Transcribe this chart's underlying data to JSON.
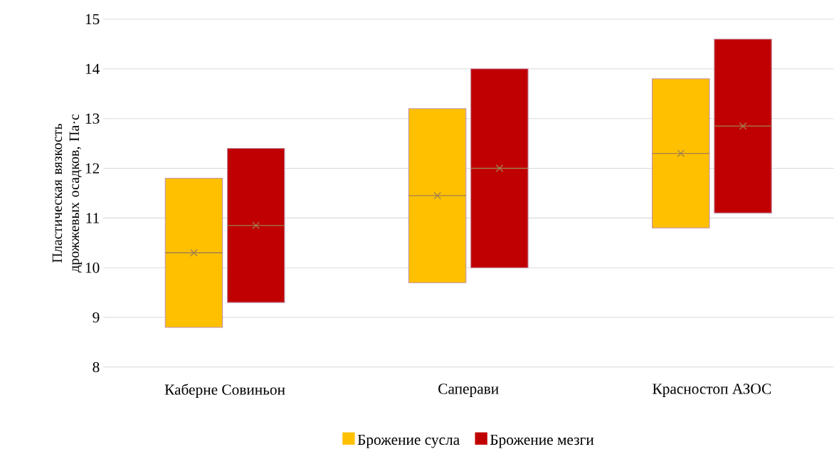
{
  "chart_data": {
    "type": "box",
    "ylabel": "Пластическая вязкость дрожжевых осадков, Па·с",
    "categories": [
      "Каберне Совиньон",
      "Саперави",
      "Красностоп АЗОС"
    ],
    "series": [
      {
        "name": "Брожение сусла",
        "color": "#ffc000",
        "boxes": [
          {
            "low": 8.8,
            "q1": 8.8,
            "median": 10.3,
            "q3": 11.8,
            "high": 11.8,
            "mean": 10.3
          },
          {
            "low": 9.7,
            "q1": 9.7,
            "median": 11.45,
            "q3": 13.2,
            "high": 13.2,
            "mean": 11.45
          },
          {
            "low": 10.8,
            "q1": 10.8,
            "median": 12.3,
            "q3": 13.8,
            "high": 13.8,
            "mean": 12.3
          }
        ]
      },
      {
        "name": "Брожение мезги",
        "color": "#c00000",
        "boxes": [
          {
            "low": 9.3,
            "q1": 9.3,
            "median": 10.85,
            "q3": 12.4,
            "high": 12.4,
            "mean": 10.85
          },
          {
            "low": 10.0,
            "q1": 10.0,
            "median": 12.0,
            "q3": 14.0,
            "high": 14.0,
            "mean": 12.0
          },
          {
            "low": 11.1,
            "q1": 11.1,
            "median": 12.85,
            "q3": 14.6,
            "high": 14.6,
            "mean": 12.85
          }
        ]
      }
    ],
    "ylim": [
      8,
      15
    ],
    "yticks": [
      8,
      9,
      10,
      11,
      12,
      13,
      14,
      15
    ],
    "grid": "y",
    "legend": "bottom"
  }
}
